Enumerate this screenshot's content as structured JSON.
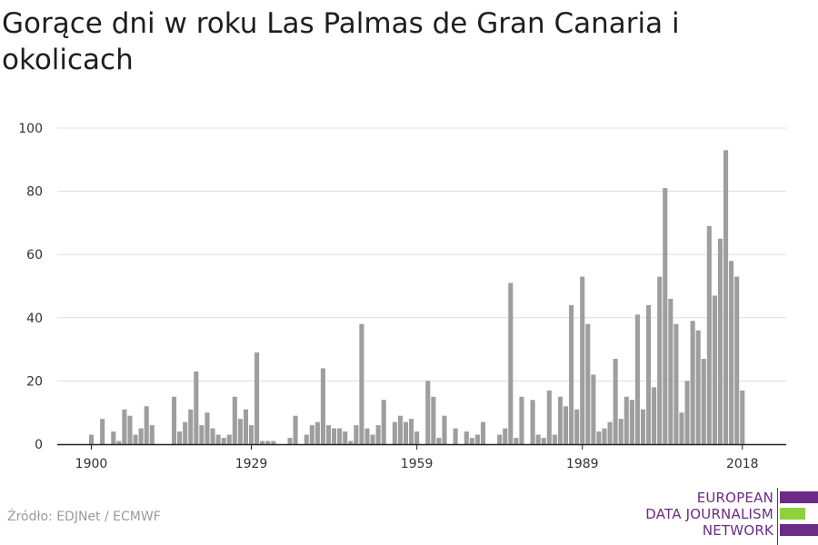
{
  "title": "Gorące dni w roku Las Palmas de Gran Canaria i okolicach",
  "source": "Źródło: EDJNet / ECMWF",
  "logo": {
    "line1": "EUROPEAN",
    "line2": "DATA JOURNALISM",
    "line3": "NETWORK",
    "colors": {
      "purple": "#6b2a86",
      "green": "#8fd13c"
    }
  },
  "colors": {
    "bar": "#9e9e9e",
    "grid": "#dddddd",
    "axis": "#222222"
  },
  "chart_data": {
    "type": "bar",
    "title": "Gorące dni w roku Las Palmas de Gran Canaria i okolicach",
    "xlabel": "",
    "ylabel": "",
    "ylim": [
      0,
      100
    ],
    "yticks": [
      0,
      20,
      40,
      60,
      80,
      100
    ],
    "xticks": [
      1900,
      1929,
      1959,
      1989,
      2018
    ],
    "grid": true,
    "x": [
      1900,
      1901,
      1902,
      1903,
      1904,
      1905,
      1906,
      1907,
      1908,
      1909,
      1910,
      1911,
      1912,
      1913,
      1914,
      1915,
      1916,
      1917,
      1918,
      1919,
      1920,
      1921,
      1922,
      1923,
      1924,
      1925,
      1926,
      1927,
      1928,
      1929,
      1930,
      1931,
      1932,
      1933,
      1934,
      1935,
      1936,
      1937,
      1938,
      1939,
      1940,
      1941,
      1942,
      1943,
      1944,
      1945,
      1946,
      1947,
      1948,
      1949,
      1950,
      1951,
      1952,
      1953,
      1954,
      1955,
      1956,
      1957,
      1958,
      1959,
      1960,
      1961,
      1962,
      1963,
      1964,
      1965,
      1966,
      1967,
      1968,
      1969,
      1970,
      1971,
      1972,
      1973,
      1974,
      1975,
      1976,
      1977,
      1978,
      1979,
      1980,
      1981,
      1982,
      1983,
      1984,
      1985,
      1986,
      1987,
      1988,
      1989,
      1990,
      1991,
      1992,
      1993,
      1994,
      1995,
      1996,
      1997,
      1998,
      1999,
      2000,
      2001,
      2002,
      2003,
      2004,
      2005,
      2006,
      2007,
      2008,
      2009,
      2010,
      2011,
      2012,
      2013,
      2014,
      2015,
      2016,
      2017,
      2018
    ],
    "values": [
      3,
      0,
      8,
      0,
      4,
      1,
      11,
      9,
      3,
      5,
      12,
      6,
      0,
      0,
      0,
      15,
      4,
      7,
      11,
      23,
      6,
      10,
      5,
      3,
      2,
      3,
      15,
      8,
      11,
      6,
      29,
      1,
      1,
      1,
      0,
      0,
      2,
      9,
      0,
      3,
      6,
      7,
      24,
      6,
      5,
      5,
      4,
      1,
      6,
      38,
      5,
      3,
      6,
      14,
      0,
      7,
      9,
      7,
      8,
      4,
      0,
      20,
      15,
      2,
      9,
      0,
      5,
      0,
      4,
      2,
      3,
      7,
      0,
      0,
      3,
      5,
      51,
      2,
      15,
      0,
      14,
      3,
      2,
      17,
      3,
      15,
      12,
      44,
      11,
      53,
      38,
      22,
      4,
      5,
      7,
      27,
      8,
      15,
      14,
      41,
      11,
      44,
      18,
      53,
      81,
      46,
      38,
      10,
      20,
      39,
      36,
      27,
      69,
      47,
      65,
      93,
      58,
      53,
      17
    ]
  }
}
